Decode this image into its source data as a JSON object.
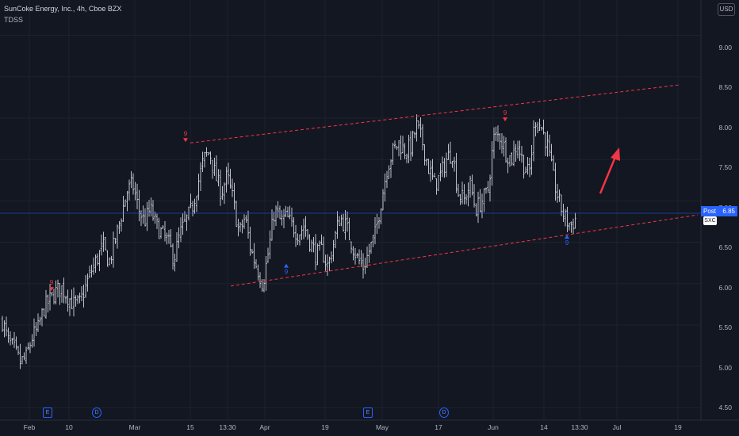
{
  "header": {
    "title": "SunCoke Energy, Inc., 4h, Cboe BZX",
    "indicator": "TDSS",
    "currency": "USD"
  },
  "price_axis": {
    "labels": [
      "9.00",
      "8.50",
      "8.00",
      "7.50",
      "7.00",
      "6.50",
      "6.00",
      "5.50",
      "5.00",
      "4.50"
    ]
  },
  "time_axis": {
    "labels": [
      "Feb",
      "10",
      "Mar",
      "15",
      "13:30",
      "Apr",
      "19",
      "May",
      "17",
      "Jun",
      "14",
      "13:30",
      "Jul",
      "19"
    ]
  },
  "post_badge": {
    "label": "Post",
    "value": "6.85"
  },
  "symbol_badge": "SXC",
  "events": [
    {
      "type": "earnings",
      "letter": "E"
    },
    {
      "type": "dividend",
      "letter": "D"
    },
    {
      "type": "earnings",
      "letter": "E"
    },
    {
      "type": "dividend",
      "letter": "D"
    }
  ],
  "td_counts": [
    "9",
    "9",
    "9",
    "9",
    "9"
  ],
  "colors": {
    "background": "#131722",
    "bars": "#d1d4dc",
    "channel": "#f23645",
    "arrow": "#f23645",
    "td_sell": "#f23645",
    "td_buy": "#2962ff",
    "badge": "#2962ff"
  },
  "chart_data": {
    "type": "ohlc",
    "title": "SunCoke Energy, Inc., 4h, Cboe BZX",
    "ylim": [
      4.35,
      9.35
    ],
    "ticks_y": [
      4.5,
      5.0,
      5.5,
      6.0,
      6.5,
      7.0,
      7.5,
      8.0,
      8.5,
      9.0
    ],
    "x_ticks": [
      "Feb",
      "10",
      "Mar",
      "15",
      "13:30",
      "Apr",
      "19",
      "May",
      "17",
      "Jun",
      "14",
      "13:30",
      "Jul",
      "19"
    ],
    "grid": true,
    "last_price": 6.85,
    "close_path": [
      5.55,
      5.3,
      5.2,
      5.05,
      5.1,
      5.35,
      5.45,
      5.7,
      5.8,
      5.9,
      5.95,
      5.85,
      5.75,
      5.75,
      5.95,
      6.15,
      6.3,
      6.45,
      6.25,
      6.5,
      6.8,
      7.1,
      7.2,
      6.9,
      6.75,
      6.9,
      6.7,
      6.6,
      6.5,
      6.3,
      6.6,
      6.75,
      6.9,
      7.2,
      7.5,
      7.6,
      7.3,
      7.1,
      7.3,
      7.0,
      6.6,
      6.8,
      6.4,
      6.2,
      6.0,
      6.4,
      6.9,
      6.75,
      6.8,
      6.7,
      6.6,
      6.7,
      6.5,
      6.35,
      6.4,
      6.2,
      6.5,
      6.8,
      6.7,
      6.5,
      6.3,
      6.2,
      6.4,
      6.6,
      7.0,
      7.4,
      7.6,
      7.7,
      7.6,
      7.65,
      7.9,
      7.7,
      7.4,
      7.2,
      7.3,
      7.5,
      7.6,
      7.1,
      7.0,
      7.2,
      6.9,
      7.0,
      7.1,
      7.75,
      7.8,
      7.6,
      7.5,
      7.7,
      7.45,
      7.3,
      8.0,
      7.9,
      7.7,
      7.3,
      7.0,
      6.8,
      6.7,
      6.8
    ],
    "channel": {
      "upper": [
        7.7,
        8.4
      ],
      "lower": [
        5.97,
        6.83
      ]
    },
    "td_sequential": [
      {
        "type": "sell",
        "count": "9",
        "price": 5.9
      },
      {
        "type": "sell",
        "count": "9",
        "price": 7.7
      },
      {
        "type": "sell",
        "count": "9",
        "price": 7.95
      },
      {
        "type": "buy",
        "count": "9",
        "price": 6.25
      },
      {
        "type": "buy",
        "count": "9",
        "price": 6.6
      }
    ]
  }
}
